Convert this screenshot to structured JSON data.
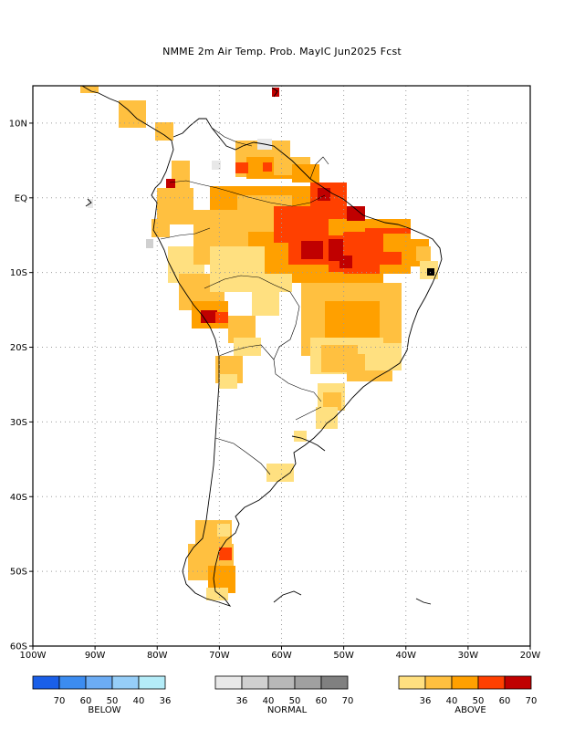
{
  "title": "NMME 2m Air Temp. Prob. MayIC  Jun2025 Fcst",
  "map": {
    "lon_range": [
      -100,
      -20
    ],
    "lat_range": [
      -60,
      15
    ],
    "lat_ticks": [
      "10N",
      "EQ",
      "10S",
      "20S",
      "30S",
      "40S",
      "50S",
      "60S"
    ],
    "lon_ticks": [
      "100W",
      "90W",
      "80W",
      "70W",
      "60W",
      "50W",
      "40W",
      "30W",
      "20W"
    ],
    "grid": "dotted"
  },
  "legend": {
    "below": {
      "label": "BELOW",
      "values": [
        "70",
        "60",
        "50",
        "40",
        "36"
      ],
      "colors": [
        "#1a5fe8",
        "#3c8cf0",
        "#6cacf4",
        "#96cef8",
        "#b4ecf8"
      ]
    },
    "normal": {
      "label": "NORMAL",
      "values": [
        "36",
        "40",
        "50",
        "60",
        "70"
      ],
      "colors": [
        "#e8e8e8",
        "#d0d0d0",
        "#b8b8b8",
        "#a0a0a0",
        "#808080"
      ]
    },
    "above": {
      "label": "ABOVE",
      "values": [
        "36",
        "40",
        "50",
        "60",
        "70"
      ],
      "colors": [
        "#ffe080",
        "#ffc040",
        "#ffa000",
        "#ff4000",
        "#c00000"
      ]
    }
  }
}
